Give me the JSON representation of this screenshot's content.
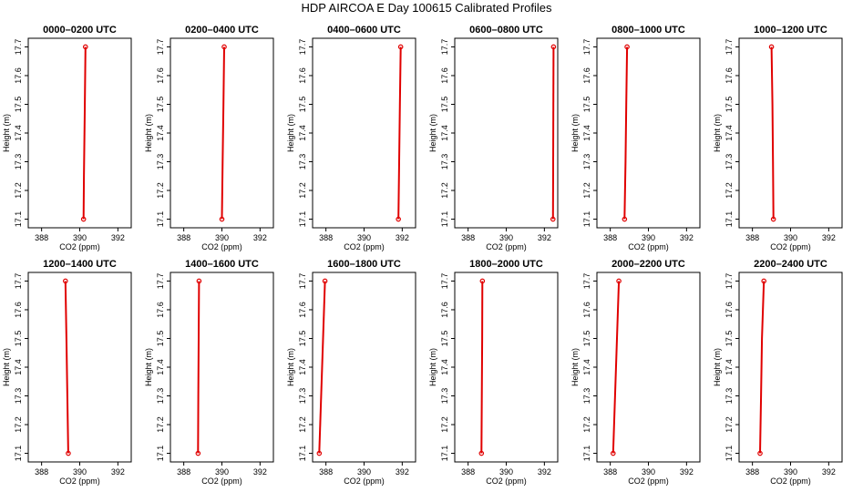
{
  "figure": {
    "title": "HDP AIRCOA E  Day 100615  Calibrated Profiles"
  },
  "chart_data": {
    "type": "line",
    "shared_axes": {
      "xlabel": "CO2 (ppm)",
      "ylabel": "Height (m)",
      "xlim": [
        387.3,
        392.7
      ],
      "ylim": [
        17.07,
        17.73
      ],
      "xticks": [
        388,
        390,
        392
      ],
      "yticks": [
        17.1,
        17.2,
        17.3,
        17.4,
        17.5,
        17.6,
        17.7
      ],
      "grid": false,
      "legend": "none",
      "line_color": "#e00000"
    },
    "panels": [
      {
        "title": "0000–0200 UTC",
        "heights": [
          17.1,
          17.25,
          17.45,
          17.7
        ],
        "co2": [
          390.2,
          390.22,
          390.26,
          390.3
        ]
      },
      {
        "title": "0200–0400 UTC",
        "heights": [
          17.1,
          17.3,
          17.5,
          17.7
        ],
        "co2": [
          390.0,
          390.04,
          390.08,
          390.12
        ]
      },
      {
        "title": "0400–0600 UTC",
        "heights": [
          17.1,
          17.3,
          17.5,
          17.7
        ],
        "co2": [
          391.8,
          391.84,
          391.88,
          391.92
        ]
      },
      {
        "title": "0600–0800 UTC",
        "heights": [
          17.1,
          17.3,
          17.5,
          17.7
        ],
        "co2": [
          392.45,
          392.46,
          392.47,
          392.48
        ]
      },
      {
        "title": "0800–1000 UTC",
        "heights": [
          17.1,
          17.3,
          17.5,
          17.7
        ],
        "co2": [
          388.75,
          388.8,
          388.84,
          388.88
        ]
      },
      {
        "title": "1000–1200 UTC",
        "heights": [
          17.1,
          17.3,
          17.5,
          17.7
        ],
        "co2": [
          389.1,
          389.08,
          389.05,
          389.0
        ]
      },
      {
        "title": "1200–1400 UTC",
        "heights": [
          17.1,
          17.3,
          17.5,
          17.7
        ],
        "co2": [
          389.4,
          389.35,
          389.3,
          389.25
        ]
      },
      {
        "title": "1400–1600 UTC",
        "heights": [
          17.1,
          17.3,
          17.5,
          17.7
        ],
        "co2": [
          388.75,
          388.76,
          388.78,
          388.8
        ]
      },
      {
        "title": "1600–1800 UTC",
        "heights": [
          17.1,
          17.3,
          17.5,
          17.7
        ],
        "co2": [
          387.65,
          387.75,
          387.85,
          387.95
        ]
      },
      {
        "title": "1800–2000 UTC",
        "heights": [
          17.1,
          17.3,
          17.5,
          17.7
        ],
        "co2": [
          388.7,
          388.72,
          388.74,
          388.75
        ]
      },
      {
        "title": "2000–2200 UTC",
        "heights": [
          17.1,
          17.3,
          17.5,
          17.7
        ],
        "co2": [
          388.15,
          388.25,
          388.35,
          388.45
        ]
      },
      {
        "title": "2200–2400 UTC",
        "heights": [
          17.1,
          17.3,
          17.5,
          17.7
        ],
        "co2": [
          388.4,
          388.45,
          388.5,
          388.6
        ]
      }
    ]
  }
}
